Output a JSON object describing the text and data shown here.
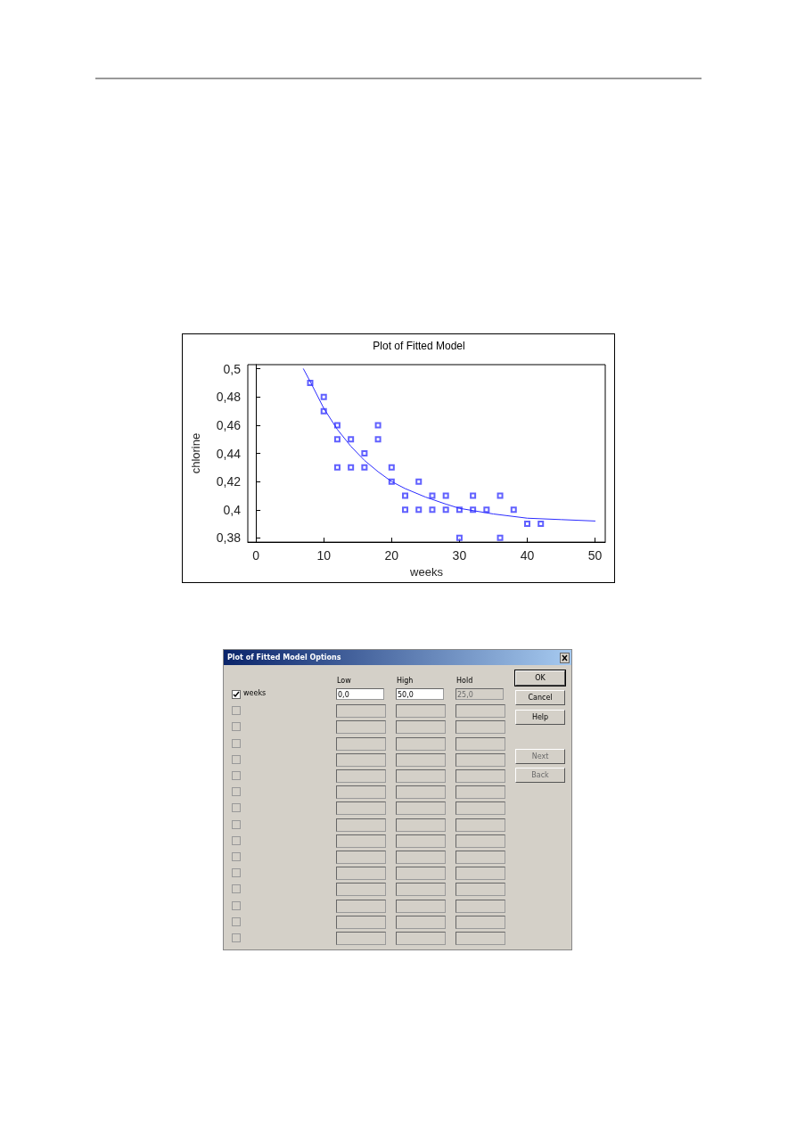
{
  "chart_data": [
    {
      "type": "scatter",
      "title": "Plot of Fitted Model",
      "xlabel": "weeks",
      "ylabel": "chlorine",
      "xlim": [
        -1.2,
        51.5
      ],
      "xticks": [
        0,
        10,
        20,
        30,
        40,
        50
      ],
      "ylim": [
        0.377,
        0.503
      ],
      "yticks": [
        {
          "value": 0.38,
          "label": "0,38"
        },
        {
          "value": 0.4,
          "label": "0,4"
        },
        {
          "value": 0.42,
          "label": "0,42"
        },
        {
          "value": 0.44,
          "label": "0,44"
        },
        {
          "value": 0.46,
          "label": "0,46"
        },
        {
          "value": 0.48,
          "label": "0,48"
        },
        {
          "value": 0.5,
          "label": "0,5"
        }
      ],
      "series": [
        {
          "type": "scatter",
          "color": "#3a3aff",
          "marker": "square",
          "x": [
            8,
            10,
            10,
            12,
            12,
            12,
            14,
            14,
            16,
            16,
            18,
            18,
            20,
            20,
            22,
            22,
            24,
            24,
            26,
            26,
            28,
            28,
            30,
            30,
            32,
            32,
            34,
            36,
            36,
            38,
            40,
            42
          ],
          "values": [
            0.49,
            0.48,
            0.47,
            0.46,
            0.45,
            0.43,
            0.45,
            0.43,
            0.44,
            0.43,
            0.46,
            0.45,
            0.43,
            0.42,
            0.41,
            0.4,
            0.42,
            0.4,
            0.41,
            0.4,
            0.41,
            0.4,
            0.4,
            0.38,
            0.41,
            0.4,
            0.4,
            0.41,
            0.38,
            0.4,
            0.39,
            0.39
          ]
        },
        {
          "type": "line",
          "color": "#2b2bff",
          "marker": "none",
          "line_style": "solid",
          "x": [
            7,
            8,
            10,
            12,
            14,
            16,
            18,
            20,
            22,
            25,
            28,
            30,
            35,
            40,
            45,
            50
          ],
          "values": [
            0.5,
            0.491,
            0.472,
            0.457,
            0.445,
            0.435,
            0.427,
            0.42,
            0.415,
            0.409,
            0.404,
            0.401,
            0.397,
            0.394,
            0.393,
            0.392
          ]
        }
      ]
    },
    {
      "type": "other",
      "title": "Plot of Fitted Model Options",
      "annotations": [
        "Low",
        "High",
        "Hold",
        "weeks",
        "0,0",
        "50,0",
        "25,0",
        "OK",
        "Cancel",
        "Help",
        "Next",
        "Back"
      ]
    }
  ]
}
